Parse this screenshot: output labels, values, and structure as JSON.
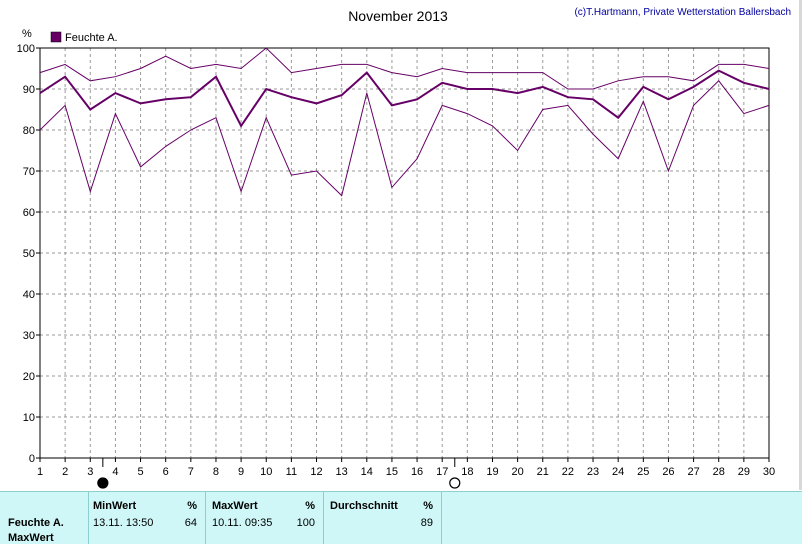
{
  "chart_data": {
    "type": "line",
    "title": "November 2013",
    "credit": "(c)T.Hartmann, Private Wetterstation Ballersbach",
    "ylabel": "%",
    "ylim": [
      0,
      100
    ],
    "yticks": [
      0,
      10,
      20,
      30,
      40,
      50,
      60,
      70,
      80,
      90,
      100
    ],
    "x": [
      1,
      2,
      3,
      4,
      5,
      6,
      7,
      8,
      9,
      10,
      11,
      12,
      13,
      14,
      15,
      16,
      17,
      18,
      19,
      20,
      21,
      22,
      23,
      24,
      25,
      26,
      27,
      28,
      29,
      30
    ],
    "xlim": [
      1,
      30
    ],
    "grid": true,
    "legend": {
      "label": "Feuchte A.",
      "color": "#660066",
      "position": "top-left"
    },
    "series": [
      {
        "values": [
          94,
          96,
          92,
          93,
          95,
          98,
          95,
          96,
          95,
          100,
          94,
          95,
          96,
          96,
          94,
          93,
          95,
          94,
          94,
          94,
          94,
          90,
          90,
          92,
          93,
          93,
          92,
          96,
          96,
          95
        ],
        "color": "#660066",
        "width": 1
      },
      {
        "values": [
          89,
          93,
          85,
          89,
          86.5,
          87.5,
          88,
          93,
          81,
          90,
          88,
          86.5,
          88.5,
          94,
          86,
          87.5,
          91.5,
          90,
          90,
          89,
          90.5,
          88,
          87.5,
          83,
          90.5,
          87.5,
          90.5,
          94.5,
          91.5,
          90
        ],
        "color": "#660066",
        "width": 2
      },
      {
        "values": [
          80,
          86,
          65,
          84,
          71,
          76,
          80,
          83,
          65,
          83,
          69,
          70,
          64,
          89,
          66,
          73,
          86,
          84,
          81,
          75,
          85,
          86,
          79,
          73,
          87,
          70,
          86,
          92,
          84,
          86
        ],
        "color": "#660066",
        "width": 1
      }
    ],
    "moon_markers": [
      {
        "day": 3.5,
        "phase": "new-moon"
      },
      {
        "day": 17.5,
        "phase": "full-moon"
      }
    ]
  },
  "stats": {
    "row_label": "Feuchte A.",
    "row_label2": "MaxWert",
    "min": {
      "header": "MinWert",
      "unit": "%",
      "time": "13.11.  13:50",
      "value": "64"
    },
    "max": {
      "header": "MaxWert",
      "unit": "%",
      "time": "10.11.  09:35",
      "value": "100"
    },
    "avg": {
      "header": "Durchschnitt",
      "unit": "%",
      "value": "89"
    }
  }
}
